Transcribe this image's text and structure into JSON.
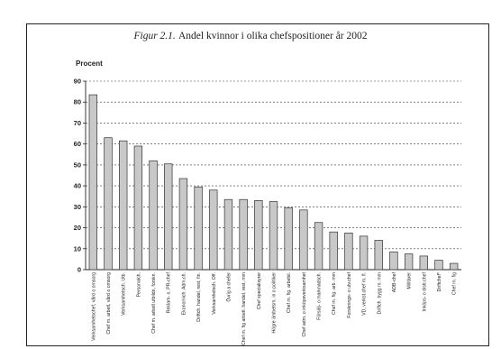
{
  "figure": {
    "label": "Figur 2.1.",
    "title": "Andel kvinnor i olika chefspositioner år 2002"
  },
  "colors": {
    "bar_fill": "#c8c8c8",
    "bar_stroke": "#333333",
    "axis": "#222222",
    "grid": "#333333"
  },
  "chart_data": {
    "type": "bar",
    "ylabel": "Procent",
    "xlabel": "",
    "ylim": [
      0,
      90
    ],
    "yticks": [
      0,
      10,
      20,
      30,
      40,
      50,
      60,
      70,
      80,
      90
    ],
    "grid": "horizontal dashed",
    "categories": [
      "Verksamhetschef, vård o omsorg",
      "Chef m. arbetl, vård o omsorg",
      "Verksamhetsch. Utb.",
      "Personalch.",
      "Chef m. arbetl utbildn, forskn.",
      "Reklam- o. PR-chef",
      "Ekonomich. Adm.ch.",
      "Driftch. handel, rest, fin.",
      "Verksamhetsch. Off.",
      "Övrig a chefer",
      "Chef m. fig arbetl. handel, rest, mm",
      "Chef specialisyrer",
      "Högre ämbetsm. in o politiker",
      "Chef m. fig. arbetsl.",
      "Chef adm. o inköpsverksamhet",
      "Försälj- o marknadsch.",
      "Chef m. fig. arb. mm",
      "Forsknings- o utv.chef",
      "VD, verkst.chef m. fl.",
      "Driftch. bygg m. mm",
      "ADB-chef",
      "Militärer",
      "Inköps- o distr.chef",
      "Driftchef*",
      "Chef m. fig"
    ],
    "values": [
      83.5,
      63,
      61.5,
      59,
      52,
      50.5,
      43.5,
      39.5,
      38,
      33.5,
      33.5,
      33,
      32.5,
      29.5,
      28.5,
      22.5,
      18,
      17.5,
      16,
      14,
      8.5,
      7.5,
      6.5,
      4.5,
      3
    ]
  }
}
